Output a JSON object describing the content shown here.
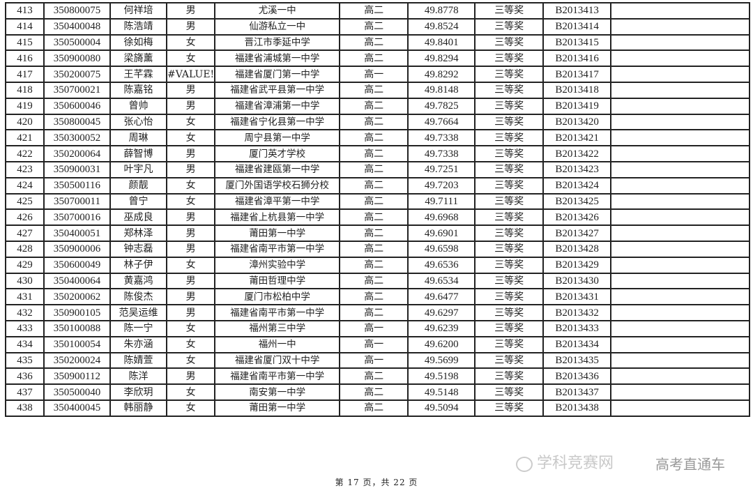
{
  "table": {
    "rows": [
      [
        "413",
        "350800075",
        "何祥培",
        "男",
        "尤溪一中",
        "高二",
        "49.8778",
        "三等奖",
        "B2013413",
        ""
      ],
      [
        "414",
        "350400048",
        "陈浩靖",
        "男",
        "仙游私立一中",
        "高二",
        "49.8524",
        "三等奖",
        "B2013414",
        ""
      ],
      [
        "415",
        "350500004",
        "徐如梅",
        "女",
        "晋江市季延中学",
        "高二",
        "49.8401",
        "三等奖",
        "B2013415",
        ""
      ],
      [
        "416",
        "350900080",
        "梁旖薰",
        "女",
        "福建省浦城第一中学",
        "高二",
        "49.8294",
        "三等奖",
        "B2013416",
        ""
      ],
      [
        "417",
        "350200075",
        "王芊霖",
        "#VALUE!",
        "福建省厦门第一中学",
        "高一",
        "49.8292",
        "三等奖",
        "B2013417",
        ""
      ],
      [
        "418",
        "350700021",
        "陈嘉铭",
        "男",
        "福建省武平县第一中学",
        "高二",
        "49.8148",
        "三等奖",
        "B2013418",
        ""
      ],
      [
        "419",
        "350600046",
        "曾帅",
        "男",
        "福建省漳浦第一中学",
        "高二",
        "49.7825",
        "三等奖",
        "B2013419",
        ""
      ],
      [
        "420",
        "350800045",
        "张心怡",
        "女",
        "福建省宁化县第一中学",
        "高二",
        "49.7664",
        "三等奖",
        "B2013420",
        ""
      ],
      [
        "421",
        "350300052",
        "周琳",
        "女",
        "周宁县第一中学",
        "高二",
        "49.7338",
        "三等奖",
        "B2013421",
        ""
      ],
      [
        "422",
        "350200064",
        "薛智博",
        "男",
        "厦门英才学校",
        "高二",
        "49.7338",
        "三等奖",
        "B2013422",
        ""
      ],
      [
        "423",
        "350900031",
        "叶宇凡",
        "男",
        "福建省建瓯第一中学",
        "高二",
        "49.7251",
        "三等奖",
        "B2013423",
        ""
      ],
      [
        "424",
        "350500116",
        "颜靓",
        "女",
        "厦门外国语学校石狮分校",
        "高二",
        "49.7203",
        "三等奖",
        "B2013424",
        ""
      ],
      [
        "425",
        "350700011",
        "曾宁",
        "女",
        "福建省漳平第一中学",
        "高二",
        "49.7111",
        "三等奖",
        "B2013425",
        ""
      ],
      [
        "426",
        "350700016",
        "巫成良",
        "男",
        "福建省上杭县第一中学",
        "高二",
        "49.6968",
        "三等奖",
        "B2013426",
        ""
      ],
      [
        "427",
        "350400051",
        "郑林泽",
        "男",
        "莆田第一中学",
        "高二",
        "49.6901",
        "三等奖",
        "B2013427",
        ""
      ],
      [
        "428",
        "350900006",
        "钟志磊",
        "男",
        "福建省南平市第一中学",
        "高二",
        "49.6598",
        "三等奖",
        "B2013428",
        ""
      ],
      [
        "429",
        "350600049",
        "林子伊",
        "女",
        "漳州实验中学",
        "高二",
        "49.6536",
        "三等奖",
        "B2013429",
        ""
      ],
      [
        "430",
        "350400064",
        "黄嘉鸿",
        "男",
        "莆田哲理中学",
        "高二",
        "49.6534",
        "三等奖",
        "B2013430",
        ""
      ],
      [
        "431",
        "350200062",
        "陈俊杰",
        "男",
        "厦门市松柏中学",
        "高二",
        "49.6477",
        "三等奖",
        "B2013431",
        ""
      ],
      [
        "432",
        "350900105",
        "范吴运维",
        "男",
        "福建省南平市第一中学",
        "高二",
        "49.6297",
        "三等奖",
        "B2013432",
        ""
      ],
      [
        "433",
        "350100088",
        "陈一宁",
        "女",
        "福州第三中学",
        "高一",
        "49.6239",
        "三等奖",
        "B2013433",
        ""
      ],
      [
        "434",
        "350100054",
        "朱亦涵",
        "女",
        "福州一中",
        "高一",
        "49.6200",
        "三等奖",
        "B2013434",
        ""
      ],
      [
        "435",
        "350200024",
        "陈婧萱",
        "女",
        "福建省厦门双十中学",
        "高一",
        "49.5699",
        "三等奖",
        "B2013435",
        ""
      ],
      [
        "436",
        "350900112",
        "陈洋",
        "男",
        "福建省南平市第一中学",
        "高二",
        "49.5198",
        "三等奖",
        "B2013436",
        ""
      ],
      [
        "437",
        "350500040",
        "李欣玥",
        "女",
        "南安第一中学",
        "高二",
        "49.5148",
        "三等奖",
        "B2013437",
        ""
      ],
      [
        "438",
        "350400045",
        "韩丽静",
        "女",
        "莆田第一中学",
        "高二",
        "49.5094",
        "三等奖",
        "B2013438",
        ""
      ]
    ]
  },
  "footer": {
    "page_label": "第 17 页，共 22 页"
  },
  "watermark": {
    "text_back": "学科竞赛网",
    "text_front": "高考直通车",
    "icon": "wechat-icon"
  }
}
